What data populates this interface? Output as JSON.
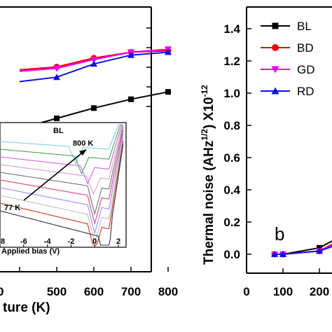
{
  "chart_data": [
    {
      "type": "line",
      "panel": "a",
      "xlabel_visible": "ture (K)",
      "x_ticks": [
        "500",
        "600",
        "700",
        "800"
      ],
      "x_partial_tick": "0",
      "series": [
        {
          "name": "BL",
          "color": "#000000",
          "marker": "square",
          "x": [
            400,
            500,
            600,
            700,
            800
          ],
          "y": [
            0.06,
            0.2,
            0.34,
            0.46,
            0.56
          ]
        },
        {
          "name": "BD",
          "color": "#e8000d",
          "marker": "circle",
          "x": [
            400,
            500,
            600,
            700,
            800
          ],
          "y": [
            0.86,
            0.9,
            1.02,
            1.1,
            1.12
          ]
        },
        {
          "name": "GD",
          "color": "#ee00ee",
          "marker": "triangle-down",
          "x": [
            400,
            500,
            600,
            700,
            800
          ],
          "y": [
            0.84,
            0.88,
            1.0,
            1.1,
            1.14
          ]
        },
        {
          "name": "RD",
          "color": "#1010e0",
          "marker": "triangle-up",
          "x": [
            400,
            500,
            600,
            700,
            800
          ],
          "y": [
            0.7,
            0.76,
            0.94,
            1.06,
            1.1
          ]
        }
      ],
      "inset": {
        "type": "line",
        "xlabel": "Applied bias (V)",
        "x_ticks": [
          "8",
          "-6",
          "-4",
          "-2",
          "0",
          "2"
        ],
        "labels": {
          "series": "BL",
          "high_temp": "800 K",
          "low_temp": "77 K"
        },
        "curve_colors": [
          "#7fd0f0",
          "#50a050",
          "#e060e0",
          "#d0a0d0",
          "#707070",
          "#e04080",
          "#9090ff",
          "#c0c0c0",
          "#d03020",
          "#303030"
        ]
      }
    },
    {
      "type": "line",
      "panel": "b",
      "ylabel": "Thermal noise (AHz^1/2) X10^-12",
      "ylabel_main": "Thermal noise (AHz",
      "ylabel_exp": "1/2",
      "ylabel_tail": ") X10",
      "ylabel_power": "-12",
      "ylim": [
        -0.1,
        1.5
      ],
      "y_ticks": [
        "0.0",
        "0.2",
        "0.4",
        "0.6",
        "0.8",
        "1.0",
        "1.2",
        "1.4"
      ],
      "x_ticks": [
        "0",
        "100",
        "200"
      ],
      "panel_letter": "b",
      "series": [
        {
          "name": "BL",
          "color": "#000000",
          "marker": "square",
          "x": [
            77,
            100,
            200,
            250
          ],
          "y": [
            0.0,
            0.0,
            0.04,
            0.1
          ]
        },
        {
          "name": "BD",
          "color": "#e8000d",
          "marker": "circle",
          "x": [
            77,
            100,
            200,
            250
          ],
          "y": [
            0.0,
            0.0,
            0.02,
            0.08
          ]
        },
        {
          "name": "GD",
          "color": "#ee00ee",
          "marker": "triangle-down",
          "x": [
            77,
            100,
            200,
            250
          ],
          "y": [
            0.0,
            0.0,
            0.02,
            0.07
          ]
        },
        {
          "name": "RD",
          "color": "#1010e0",
          "marker": "triangle-up",
          "x": [
            77,
            100,
            200,
            250
          ],
          "y": [
            0.0,
            0.0,
            0.02,
            0.06
          ]
        }
      ],
      "legend": [
        "BL",
        "BD",
        "GD",
        "RD"
      ]
    }
  ]
}
